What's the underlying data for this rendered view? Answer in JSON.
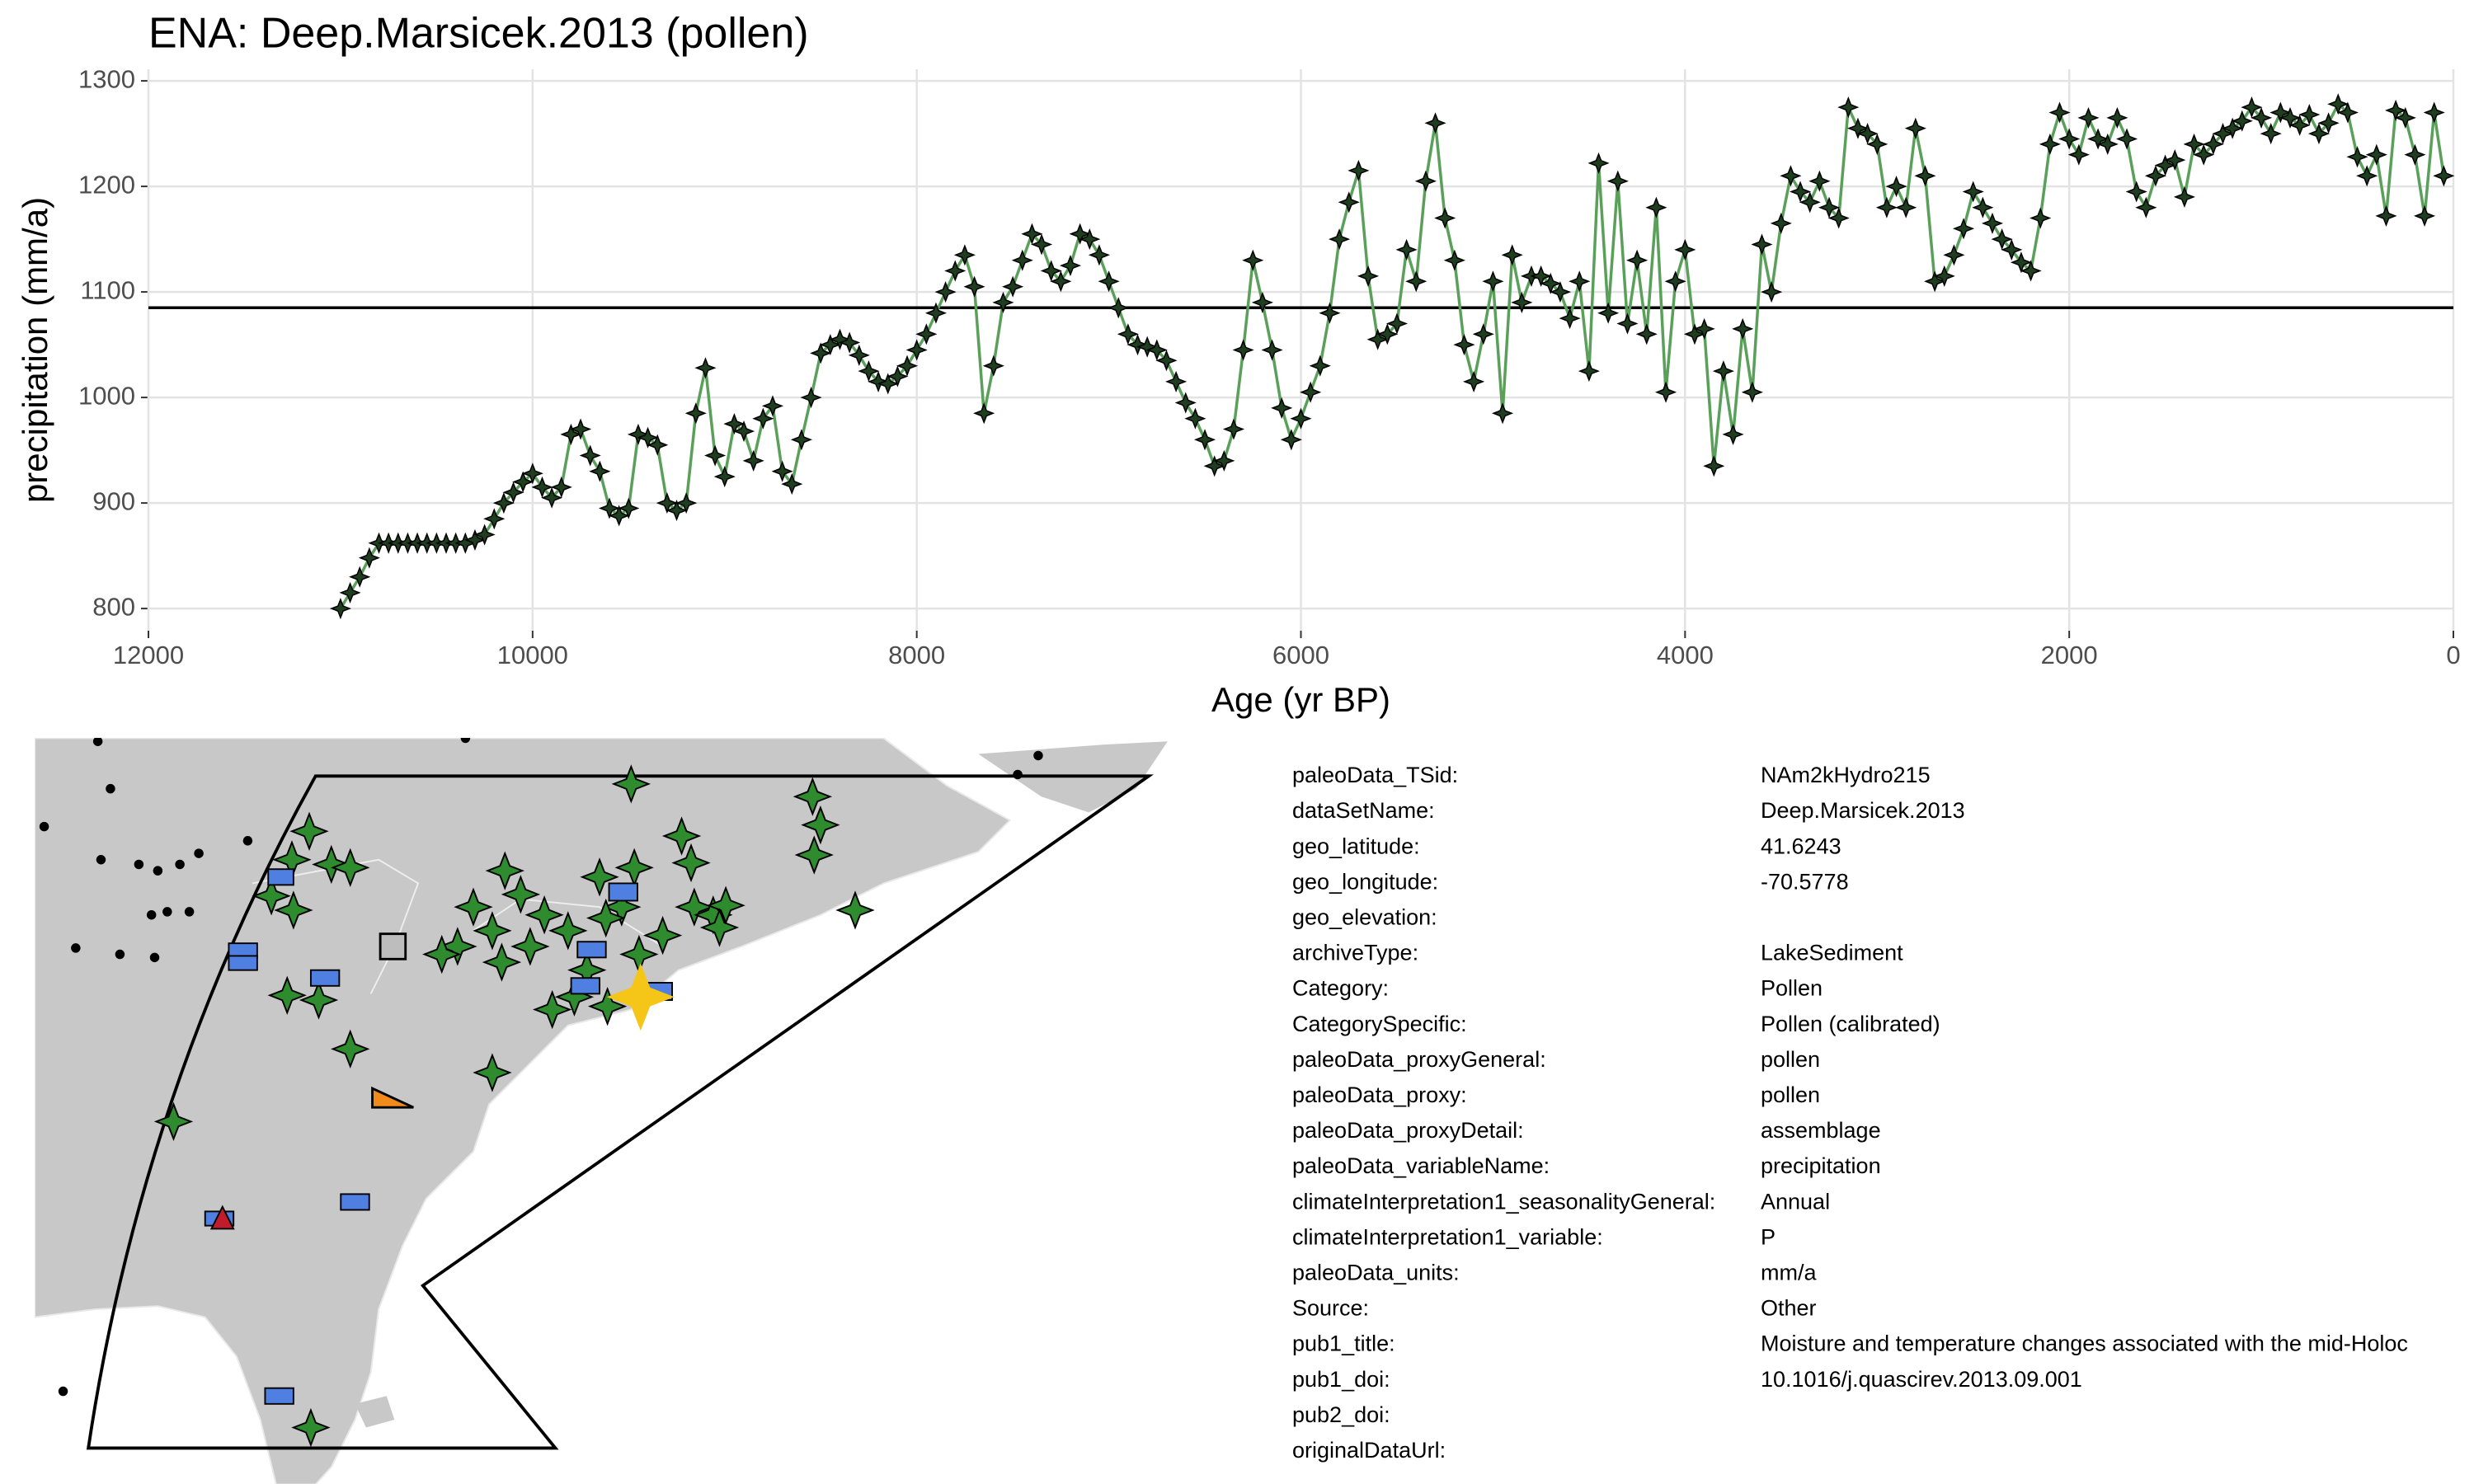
{
  "chart_data": {
    "type": "line",
    "title": "ENA: Deep.Marsicek.2013 (pollen)",
    "x_label": "Age (yr BP)",
    "y_label": "precipitation (mm/a)",
    "xlim": [
      12000,
      0
    ],
    "ylim": [
      779,
      1311
    ],
    "xticks": [
      12000,
      10000,
      8000,
      6000,
      4000,
      2000,
      0
    ],
    "yticks": [
      800,
      900,
      1000,
      1100,
      1200,
      1300
    ],
    "grid": true,
    "reference_line": 1085,
    "series": [
      {
        "name": "precipitation",
        "color": "#5aa05a",
        "marker_color": "#1f3d1f",
        "x": [
          11000,
          10950,
          10900,
          10850,
          10800,
          10750,
          10700,
          10650,
          10600,
          10550,
          10500,
          10450,
          10400,
          10350,
          10300,
          10250,
          10200,
          10150,
          10100,
          10050,
          10000,
          9950,
          9900,
          9850,
          9800,
          9750,
          9700,
          9650,
          9600,
          9550,
          9500,
          9450,
          9400,
          9350,
          9300,
          9250,
          9200,
          9150,
          9100,
          9050,
          9000,
          8950,
          8900,
          8850,
          8800,
          8750,
          8700,
          8650,
          8600,
          8550,
          8500,
          8450,
          8400,
          8350,
          8300,
          8250,
          8200,
          8150,
          8100,
          8050,
          8000,
          7950,
          7900,
          7850,
          7800,
          7750,
          7700,
          7650,
          7600,
          7550,
          7500,
          7450,
          7400,
          7350,
          7300,
          7250,
          7200,
          7150,
          7100,
          7050,
          7000,
          6950,
          6900,
          6850,
          6800,
          6750,
          6700,
          6650,
          6600,
          6550,
          6500,
          6450,
          6400,
          6350,
          6300,
          6250,
          6200,
          6150,
          6100,
          6050,
          6000,
          5950,
          5900,
          5850,
          5800,
          5750,
          5700,
          5650,
          5600,
          5550,
          5500,
          5450,
          5400,
          5350,
          5300,
          5250,
          5200,
          5150,
          5100,
          5050,
          5000,
          4950,
          4900,
          4850,
          4800,
          4750,
          4700,
          4650,
          4600,
          4550,
          4500,
          4450,
          4400,
          4350,
          4300,
          4250,
          4200,
          4150,
          4100,
          4050,
          4000,
          3950,
          3900,
          3850,
          3800,
          3750,
          3700,
          3650,
          3600,
          3550,
          3500,
          3450,
          3400,
          3350,
          3300,
          3250,
          3200,
          3150,
          3100,
          3050,
          3000,
          2950,
          2900,
          2850,
          2800,
          2750,
          2700,
          2650,
          2600,
          2550,
          2500,
          2450,
          2400,
          2350,
          2300,
          2250,
          2200,
          2150,
          2100,
          2050,
          2000,
          1950,
          1900,
          1850,
          1800,
          1750,
          1700,
          1650,
          1600,
          1550,
          1500,
          1450,
          1400,
          1350,
          1300,
          1250,
          1200,
          1150,
          1100,
          1050,
          1000,
          950,
          900,
          850,
          800,
          750,
          700,
          650,
          600,
          550,
          500,
          450,
          400,
          350,
          300,
          250,
          200,
          150,
          100,
          50
        ],
        "values": [
          800,
          815,
          830,
          848,
          862,
          862,
          862,
          862,
          862,
          862,
          862,
          862,
          862,
          862,
          865,
          870,
          885,
          900,
          910,
          920,
          928,
          915,
          905,
          915,
          965,
          970,
          945,
          930,
          895,
          888,
          895,
          965,
          962,
          955,
          900,
          893,
          900,
          985,
          1028,
          945,
          925,
          975,
          968,
          940,
          980,
          992,
          930,
          918,
          960,
          1000,
          1042,
          1050,
          1055,
          1052,
          1040,
          1025,
          1015,
          1013,
          1020,
          1030,
          1045,
          1060,
          1080,
          1100,
          1120,
          1135,
          1105,
          985,
          1030,
          1090,
          1105,
          1130,
          1155,
          1145,
          1120,
          1110,
          1125,
          1155,
          1150,
          1135,
          1110,
          1085,
          1060,
          1050,
          1048,
          1045,
          1035,
          1015,
          995,
          980,
          960,
          935,
          940,
          970,
          1045,
          1130,
          1090,
          1045,
          990,
          960,
          980,
          1005,
          1030,
          1080,
          1150,
          1185,
          1215,
          1115,
          1055,
          1060,
          1070,
          1140,
          1110,
          1205,
          1260,
          1170,
          1130,
          1050,
          1015,
          1060,
          1110,
          985,
          1135,
          1090,
          1115,
          1115,
          1108,
          1100,
          1075,
          1110,
          1025,
          1222,
          1080,
          1205,
          1070,
          1130,
          1060,
          1180,
          1005,
          1110,
          1140,
          1060,
          1065,
          935,
          1025,
          965,
          1065,
          1005,
          1145,
          1100,
          1165,
          1210,
          1195,
          1185,
          1205,
          1180,
          1170,
          1275,
          1255,
          1250,
          1240,
          1180,
          1200,
          1180,
          1255,
          1210,
          1110,
          1115,
          1135,
          1160,
          1195,
          1180,
          1165,
          1150,
          1140,
          1128,
          1120,
          1170,
          1240,
          1270,
          1245,
          1230,
          1265,
          1245,
          1240,
          1265,
          1245,
          1195,
          1180,
          1210,
          1220,
          1225,
          1190,
          1240,
          1230,
          1240,
          1250,
          1255,
          1262,
          1275,
          1265,
          1250,
          1270,
          1265,
          1258,
          1268,
          1250,
          1260,
          1278,
          1270,
          1228,
          1210,
          1230,
          1172,
          1272,
          1265,
          1230,
          1172,
          1270,
          1210
        ]
      }
    ]
  },
  "metadata": {
    "rows": [
      [
        "paleoData_TSid:",
        "NAm2kHydro215"
      ],
      [
        "dataSetName:",
        "Deep.Marsicek.2013"
      ],
      [
        "geo_latitude:",
        "41.6243"
      ],
      [
        "geo_longitude:",
        "-70.5778"
      ],
      [
        "geo_elevation:"
      ],
      [
        "archiveType:",
        "LakeSediment"
      ],
      [
        "Category:",
        "Pollen"
      ],
      [
        "CategorySpecific:",
        "Pollen (calibrated)"
      ],
      [
        "paleoData_proxyGeneral:",
        "pollen"
      ],
      [
        "paleoData_proxy:",
        "pollen"
      ],
      [
        "paleoData_proxyDetail:",
        "assemblage"
      ],
      [
        "paleoData_variableName:",
        "precipitation"
      ],
      [
        "climateInterpretation1_seasonalityGeneral:",
        "Annual"
      ],
      [
        "climateInterpretation1_variable:",
        "P"
      ],
      [
        "paleoData_units:",
        "mm/a"
      ],
      [
        "Source:",
        "Other"
      ],
      [
        "pub1_title:",
        "Moisture and temperature changes associated with the mid-Holoc"
      ],
      [
        "pub1_doi:",
        "10.1016/j.quascirev.2013.09.001"
      ],
      [
        "pub2_doi:"
      ],
      [
        "originalDataUrl:"
      ]
    ]
  }
}
